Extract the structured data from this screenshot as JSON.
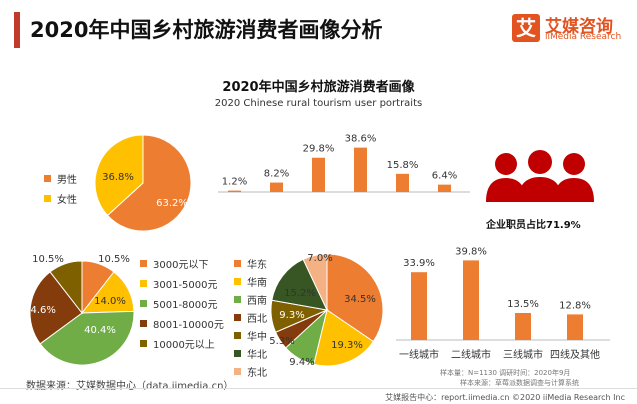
{
  "header": {
    "title": "2020年中国乡村旅游消费者画像分析"
  },
  "logo": {
    "mark": "艾",
    "name": "艾媒咨询",
    "english": "iiMedia Research"
  },
  "chart_header": {
    "title": "2020年中国乡村旅游消费者画像",
    "subtitle": "2020 Chinese rural tourism user portraits"
  },
  "colors": {
    "orange": "#ED7D31",
    "yellow": "#FFC000",
    "green": "#70AD47",
    "brown": "#843C0C",
    "darkgreen": "#375623",
    "olive": "#7F6000",
    "salmon": "#F4B183",
    "red": "#C00000",
    "title_bar": "#c0392b"
  },
  "chart_data": [
    {
      "type": "pie",
      "legend": [
        "男性",
        "女性"
      ],
      "slices": [
        {
          "label": "男性",
          "value": 63.2,
          "value_label": "63.2%",
          "color": "#ED7D31"
        },
        {
          "label": "女性",
          "value": 36.8,
          "value_label": "36.8%",
          "color": "#FFC000"
        }
      ]
    },
    {
      "type": "bar",
      "categories": [
        "",
        "",
        "",
        "",
        "",
        ""
      ],
      "values": [
        1.2,
        8.2,
        29.8,
        38.6,
        15.8,
        6.4
      ],
      "value_labels": [
        "1.2%",
        "8.2%",
        "29.8%",
        "38.6%",
        "15.8%",
        "6.4%"
      ],
      "ylim": [
        0,
        40
      ],
      "color": "#ED7D31"
    },
    {
      "type": "pie",
      "legend": [
        "3000元以下",
        "3001-5000元",
        "5001-8000元",
        "8001-10000元",
        "10000元以上"
      ],
      "slices": [
        {
          "label": "3000元以下",
          "value": 10.5,
          "value_label": "10.5%",
          "color": "#ED7D31"
        },
        {
          "label": "3001-5000元",
          "value": 14.0,
          "value_label": "14.0%",
          "color": "#FFC000"
        },
        {
          "label": "5001-8000元",
          "value": 40.4,
          "value_label": "40.4%",
          "color": "#70AD47"
        },
        {
          "label": "8001-10000元",
          "value": 24.6,
          "value_label": "24.6%",
          "color": "#843C0C"
        },
        {
          "label": "10000元以上",
          "value": 10.5,
          "value_label": "10.5%",
          "color": "#7F6000"
        }
      ]
    },
    {
      "type": "pie",
      "legend": [
        "华东",
        "华南",
        "西南",
        "西北",
        "华中",
        "华北",
        "东北"
      ],
      "slices": [
        {
          "label": "华东",
          "value": 34.5,
          "value_label": "34.5%",
          "color": "#ED7D31"
        },
        {
          "label": "华南",
          "value": 19.3,
          "value_label": "19.3%",
          "color": "#FFC000"
        },
        {
          "label": "西南",
          "value": 9.4,
          "value_label": "9.4%",
          "color": "#70AD47"
        },
        {
          "label": "西北",
          "value": 5.3,
          "value_label": "5.3%",
          "color": "#843C0C"
        },
        {
          "label": "华中",
          "value": 9.3,
          "value_label": "9.3%",
          "color": "#7F6000"
        },
        {
          "label": "华北",
          "value": 15.2,
          "value_label": "15.2%",
          "color": "#375623"
        },
        {
          "label": "东北",
          "value": 7.0,
          "value_label": "7.0%",
          "color": "#F4B183"
        }
      ]
    },
    {
      "type": "bar",
      "categories": [
        "一线城市",
        "二线城市",
        "三线城市",
        "四线及其他"
      ],
      "values": [
        33.9,
        39.8,
        13.5,
        12.8
      ],
      "value_labels": [
        "33.9%",
        "39.8%",
        "13.5%",
        "12.8%"
      ],
      "ylim": [
        0,
        40
      ],
      "color": "#ED7D31"
    }
  ],
  "employee": {
    "icon": "people-group-icon",
    "note": "企业职员占比71.9%"
  },
  "footer": {
    "source": "数据来源：艾媒数据中心（data.iimedia.cn）",
    "sample": "样本量：N=1130    调研时间：2020年9月",
    "sample_source": "样本来源：草莓派数据调查与计算系统",
    "copyright": "艾媒报告中心：report.iimedia.cn    ©2020  iiMedia Research  Inc"
  }
}
